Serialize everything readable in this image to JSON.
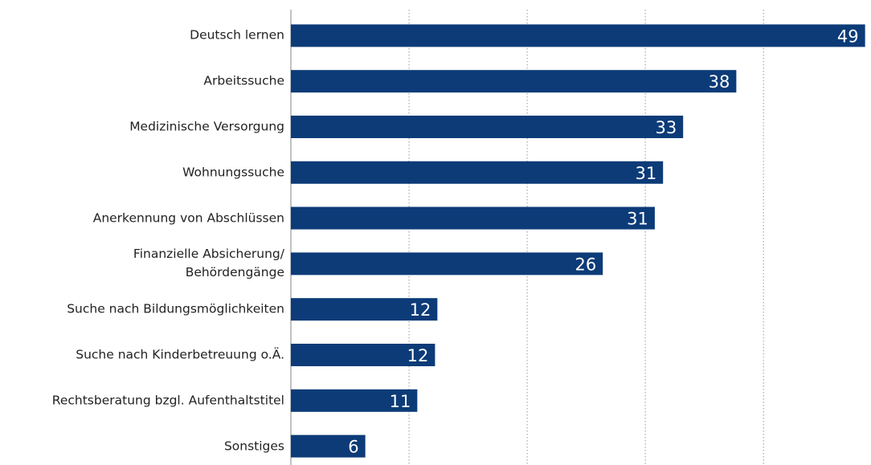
{
  "chart_data": {
    "type": "bar",
    "orientation": "horizontal",
    "categories": [
      "Deutsch lernen",
      "Arbeitssuche",
      "Medizinische Versorgung",
      "Wohnungssuche",
      "Anerkennung von Abschlüssen",
      "Finanzielle Absicherung/\nBehördengänge",
      "Suche nach Bildungsmöglichkeiten",
      "Suche nach Kinderbetreuung o.Ä.",
      "Rechtsberatung bzgl. Aufenthaltstitel",
      "Sonstiges"
    ],
    "values": [
      48.6,
      37.7,
      33.2,
      31.5,
      30.8,
      26.4,
      12.4,
      12.2,
      10.7,
      6.3
    ],
    "value_labels": [
      "49",
      "38",
      "33",
      "31",
      "31",
      "26",
      "12",
      "12",
      "11",
      "6"
    ],
    "color": "#0c3b78",
    "xlim": [
      0,
      49.1
    ],
    "xticks": [
      10,
      20,
      30,
      40
    ],
    "grid": true
  }
}
